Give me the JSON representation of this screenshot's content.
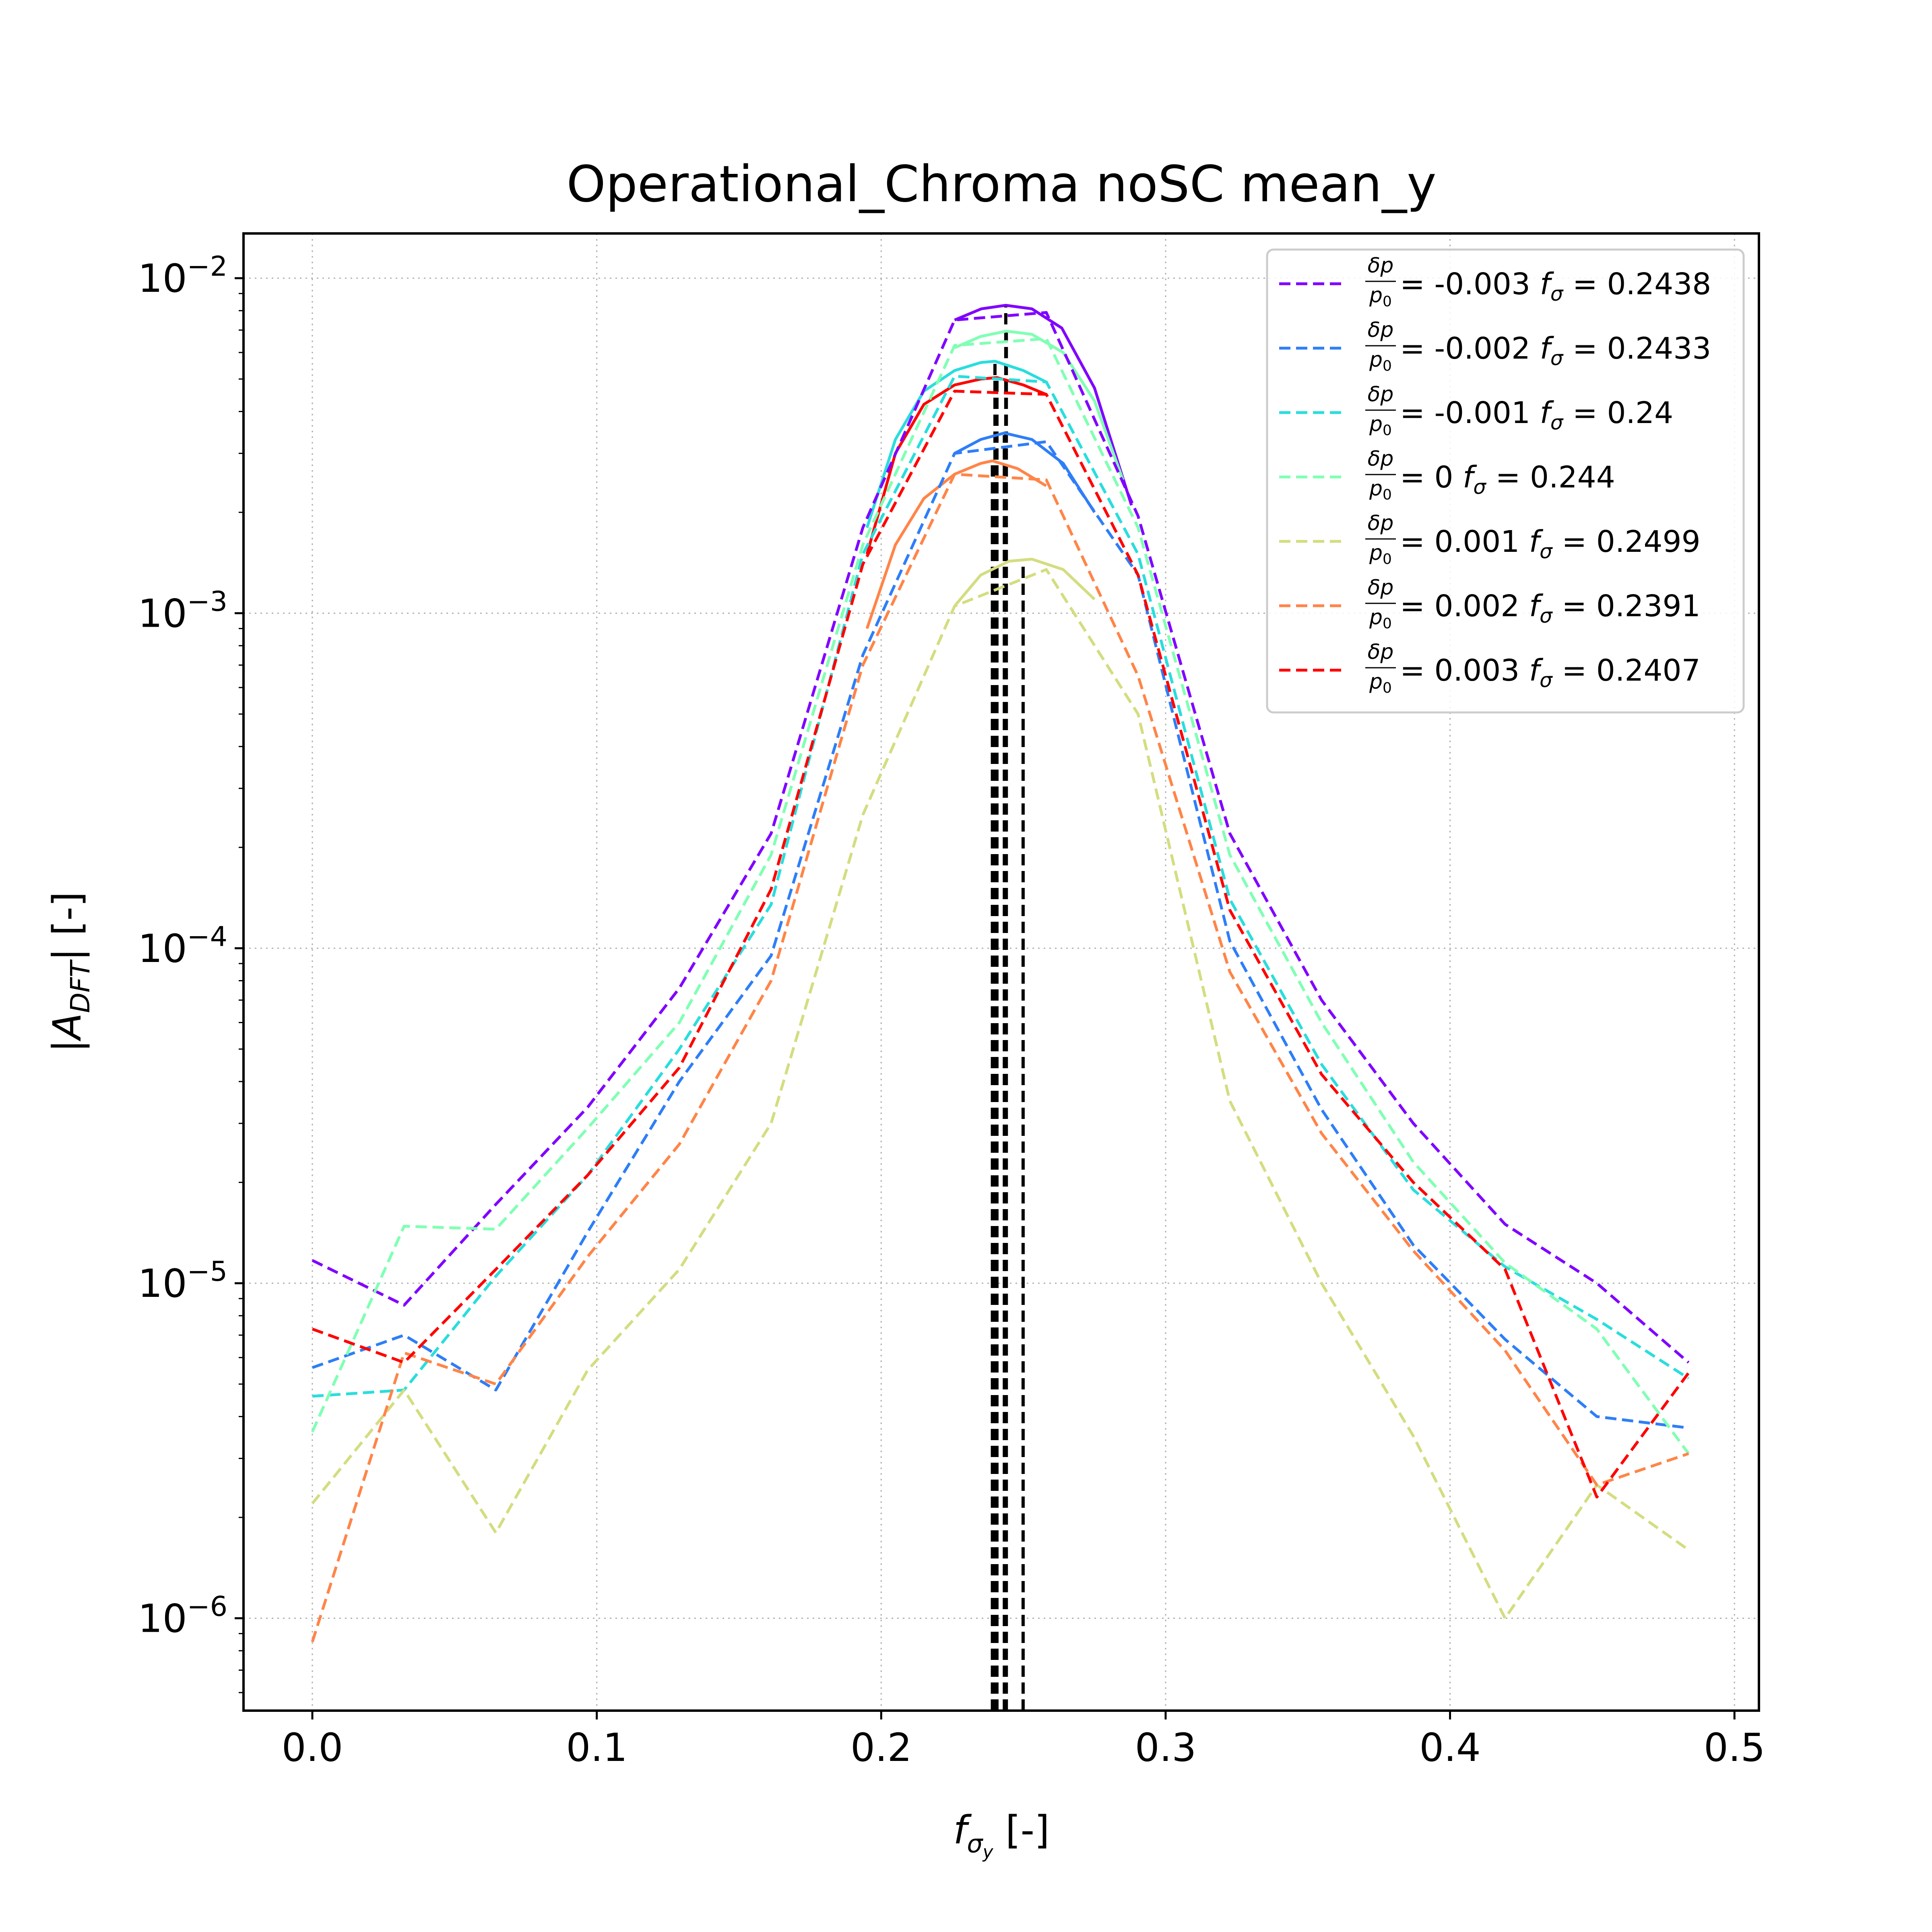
{
  "chart_data": {
    "type": "line",
    "title": "Operational_Chroma noSC mean_y",
    "xlabel": "f_σy [-]",
    "ylabel": "|A_DFT| [-]",
    "xlim": [
      -0.0242,
      0.5086
    ],
    "ylim": [
      5.3e-07,
      0.0136
    ],
    "yscale": "log",
    "grid": true,
    "legend_position": "top-right",
    "xticks": [
      {
        "value": 0.0,
        "label": "0.0"
      },
      {
        "value": 0.1,
        "label": "0.1"
      },
      {
        "value": 0.2,
        "label": "0.2"
      },
      {
        "value": 0.3,
        "label": "0.3"
      },
      {
        "value": 0.4,
        "label": "0.4"
      },
      {
        "value": 0.5,
        "label": "0.5"
      }
    ],
    "yticks": [
      {
        "value": 1e-06,
        "base": "10",
        "exp": "−6"
      },
      {
        "value": 1e-05,
        "base": "10",
        "exp": "−5"
      },
      {
        "value": 0.0001,
        "base": "10",
        "exp": "−4"
      },
      {
        "value": 0.001,
        "base": "10",
        "exp": "−3"
      },
      {
        "value": 0.01,
        "base": "10",
        "exp": "−2"
      }
    ],
    "x": [
      0.0,
      0.03226,
      0.06452,
      0.09677,
      0.12903,
      0.16129,
      0.19355,
      0.22581,
      0.25806,
      0.29032,
      0.32258,
      0.35484,
      0.3871,
      0.41935,
      0.45161,
      0.48387
    ],
    "series": [
      {
        "dp": "-0.003",
        "f_sigma": "0.2438",
        "color": "#8000ff",
        "values": [
          1.17e-05,
          8.6e-06,
          1.72e-05,
          3.35e-05,
          7.6e-05,
          0.00022,
          0.0018,
          0.0075,
          0.0079,
          0.00195,
          0.00022,
          7e-05,
          3e-05,
          1.5e-05,
          1e-05,
          5.8e-06
        ],
        "peak_fit": {
          "x": [
            0.2258,
            0.2352,
            0.2438,
            0.253,
            0.2635,
            0.275,
            0.288
          ],
          "y": [
            0.0075,
            0.0081,
            0.0083,
            0.0081,
            0.0071,
            0.0047,
            0.0021
          ]
        }
      },
      {
        "dp": "-0.002",
        "f_sigma": "0.2433",
        "color": "#2e7ef7",
        "values": [
          5.6e-06,
          7e-06,
          4.8e-06,
          1.42e-05,
          4e-05,
          9.5e-05,
          0.00075,
          0.003,
          0.00325,
          0.0013,
          0.000105,
          3.3e-05,
          1.3e-05,
          6.8e-06,
          4e-06,
          3.7e-06
        ],
        "peak_fit": {
          "x": [
            0.2258,
            0.235,
            0.2433,
            0.253,
            0.264,
            0.275
          ],
          "y": [
            0.003,
            0.0033,
            0.00345,
            0.0033,
            0.0028,
            0.002
          ]
        }
      },
      {
        "dp": "-0.001",
        "f_sigma": "0.24",
        "color": "#2adddd",
        "values": [
          4.6e-06,
          4.8e-06,
          1.05e-05,
          2.1e-05,
          5e-05,
          0.000135,
          0.0015,
          0.0051,
          0.0049,
          0.0015,
          0.00014,
          4.5e-05,
          1.9e-05,
          1.12e-05,
          7.8e-06,
          5.2e-06
        ],
        "peak_fit": {
          "x": [
            0.195,
            0.205,
            0.215,
            0.2258,
            0.235,
            0.24,
            0.25,
            0.258
          ],
          "y": [
            0.0018,
            0.0033,
            0.0046,
            0.0053,
            0.0056,
            0.00565,
            0.0053,
            0.0049
          ]
        }
      },
      {
        "dp": "0",
        "f_sigma": "0.244",
        "color": "#80ffb4",
        "values": [
          3.6e-06,
          1.48e-05,
          1.45e-05,
          2.9e-05,
          6e-05,
          0.00019,
          0.0016,
          0.0063,
          0.0066,
          0.0018,
          0.00019,
          6e-05,
          2.3e-05,
          1.15e-05,
          7.3e-06,
          3.1e-06
        ],
        "peak_fit": {
          "x": [
            0.2258,
            0.235,
            0.244,
            0.253,
            0.264,
            0.275,
            0.285
          ],
          "y": [
            0.0062,
            0.0067,
            0.00695,
            0.0068,
            0.006,
            0.0043,
            0.0025
          ]
        }
      },
      {
        "dp": "0.001",
        "f_sigma": "0.2499",
        "color": "#d4dd80",
        "values": [
          2.2e-06,
          4.8e-06,
          1.8e-06,
          5.5e-06,
          1.1e-05,
          3e-05,
          0.00025,
          0.00105,
          0.00135,
          0.0005,
          3.5e-05,
          1e-05,
          3.5e-06,
          1e-06,
          2.5e-06,
          1.6e-06
        ],
        "peak_fit": {
          "x": [
            0.2258,
            0.235,
            0.245,
            0.253,
            0.264,
            0.275
          ],
          "y": [
            0.00105,
            0.0013,
            0.00143,
            0.00145,
            0.00135,
            0.0011
          ]
        }
      },
      {
        "dp": "0.002",
        "f_sigma": "0.2391",
        "color": "#ff8548",
        "values": [
          8.5e-07,
          6.2e-06,
          5e-06,
          1.2e-05,
          2.6e-05,
          8e-05,
          0.0007,
          0.0026,
          0.0025,
          0.00065,
          8.5e-05,
          2.8e-05,
          1.25e-05,
          6.3e-06,
          2.5e-06,
          3.1e-06
        ],
        "peak_fit": {
          "x": [
            0.195,
            0.205,
            0.215,
            0.2258,
            0.235,
            0.2391,
            0.248,
            0.258
          ],
          "y": [
            0.0009,
            0.0016,
            0.0022,
            0.0026,
            0.0028,
            0.00285,
            0.0027,
            0.0024
          ]
        }
      },
      {
        "dp": "0.003",
        "f_sigma": "0.2407",
        "color": "#ff0000",
        "values": [
          7.3e-06,
          5.8e-06,
          1.1e-05,
          2.1e-05,
          4.4e-05,
          0.00015,
          0.0014,
          0.0046,
          0.0045,
          0.0013,
          0.00013,
          4.2e-05,
          2e-05,
          1.1e-05,
          2.3e-06,
          5.4e-06
        ],
        "peak_fit": {
          "x": [
            0.195,
            0.205,
            0.215,
            0.2258,
            0.235,
            0.2407,
            0.25,
            0.258
          ],
          "y": [
            0.0015,
            0.003,
            0.0042,
            0.0048,
            0.005,
            0.00505,
            0.0048,
            0.0045
          ]
        }
      }
    ],
    "vlines": [
      0.2438,
      0.2433,
      0.24,
      0.244,
      0.2499,
      0.2391,
      0.2407
    ],
    "vlines_top": [
      0.0083,
      0.0034,
      0.0056,
      0.0069,
      0.0014,
      0.0028,
      0.005
    ]
  }
}
